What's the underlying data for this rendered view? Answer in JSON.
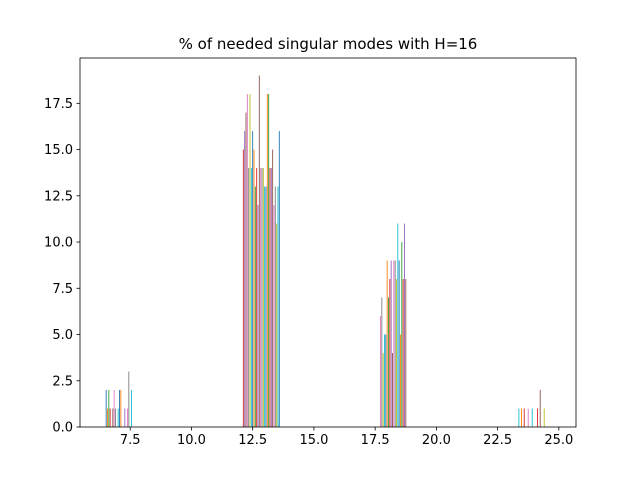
{
  "chart_data": {
    "type": "bar",
    "title": "% of needed singular modes with H=16",
    "xlabel": "",
    "ylabel": "",
    "xlim": [
      5.45,
      25.7
    ],
    "ylim": [
      0,
      19.95
    ],
    "grid": false,
    "x_ticks": [
      7.5,
      10.0,
      12.5,
      15.0,
      17.5,
      20.0,
      22.5,
      25.0
    ],
    "x_tick_labels": [
      "7.5",
      "10.0",
      "12.5",
      "15.0",
      "17.5",
      "20.0",
      "22.5",
      "25.0"
    ],
    "y_ticks": [
      0.0,
      2.5,
      5.0,
      7.5,
      10.0,
      12.5,
      15.0,
      17.5
    ],
    "y_tick_labels": [
      "0.0",
      "2.5",
      "5.0",
      "7.5",
      "10.0",
      "12.5",
      "15.0",
      "17.5"
    ],
    "palette": [
      "#1f77b4",
      "#ff7f0e",
      "#2ca02c",
      "#d62728",
      "#9467bd",
      "#8c564b",
      "#e377c2",
      "#7f7f7f",
      "#bcbd22",
      "#17becf"
    ],
    "bar_width": 0.0544,
    "groups": [
      {
        "x_start": 6.5,
        "values": [
          2,
          1,
          2,
          1,
          0,
          1,
          2,
          1,
          0,
          1,
          2,
          2,
          0,
          0,
          1,
          0,
          1,
          3,
          0,
          2
        ]
      },
      {
        "x_start": 12.1,
        "values": [
          15,
          16,
          17,
          18,
          14,
          18,
          14,
          16,
          15,
          13,
          14,
          12,
          19,
          14,
          14,
          14,
          13,
          13,
          18,
          18,
          14,
          14,
          15,
          12,
          13,
          11,
          13,
          16
        ]
      },
      {
        "x_start": 17.7,
        "values": [
          6,
          7,
          4,
          5,
          5,
          9,
          7,
          8,
          9,
          4,
          9,
          9,
          8,
          11,
          9,
          5,
          10,
          8,
          11,
          8
        ]
      },
      {
        "x_start": 23.35,
        "values": [
          1,
          0,
          1,
          0,
          1,
          0,
          0,
          1,
          0,
          0,
          1,
          0,
          0,
          0,
          1,
          0,
          2,
          0,
          0,
          1
        ]
      }
    ]
  }
}
